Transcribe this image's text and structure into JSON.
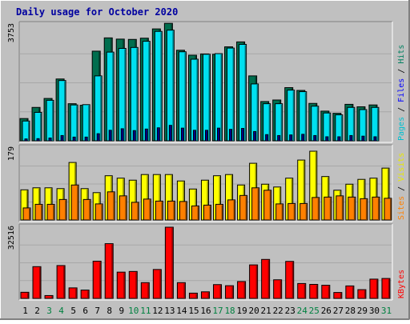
{
  "chart_data": [
    {
      "type": "bar",
      "title": "Daily usage for October 2020",
      "panel": "hits-files-pages",
      "ylabel_parts": [
        {
          "text": "Pages",
          "color": "#00c0d0"
        },
        {
          "text": " / ",
          "color": "#000000"
        },
        {
          "text": "Files",
          "color": "#0000ff"
        },
        {
          "text": " / ",
          "color": "#000000"
        },
        {
          "text": "Hits",
          "color": "#008060"
        }
      ],
      "ymax_label": "3753",
      "ylim": [
        0,
        3753
      ],
      "categories": [
        "1",
        "2",
        "3",
        "4",
        "5",
        "6",
        "7",
        "8",
        "9",
        "10",
        "11",
        "12",
        "13",
        "14",
        "15",
        "16",
        "17",
        "18",
        "19",
        "20",
        "21",
        "22",
        "23",
        "24",
        "25",
        "26",
        "27",
        "28",
        "29",
        "30",
        "31"
      ],
      "weekend_days": [
        "3",
        "4",
        "10",
        "11",
        "17",
        "18",
        "24",
        "25",
        "31"
      ],
      "series": [
        {
          "name": "Hits",
          "color": "#006e4e",
          "values": [
            720,
            1080,
            1370,
            2000,
            1200,
            1150,
            2900,
            3330,
            3290,
            3280,
            3320,
            3620,
            3800,
            2930,
            2770,
            2810,
            2800,
            3040,
            3200,
            2100,
            1270,
            1320,
            1720,
            1630,
            1210,
            960,
            890,
            1180,
            1100,
            1160,
            0
          ]
        },
        {
          "name": "Files",
          "color": "#00e0f0",
          "values": [
            640,
            920,
            1310,
            1950,
            1160,
            1170,
            2100,
            2870,
            2990,
            3020,
            3220,
            3540,
            3580,
            2880,
            2640,
            2800,
            2820,
            3000,
            3120,
            1840,
            1200,
            1200,
            1640,
            1590,
            1120,
            900,
            840,
            1080,
            1010,
            1080,
            0
          ]
        },
        {
          "name": "Pages",
          "color": "#0000c8",
          "values": [
            60,
            70,
            90,
            170,
            120,
            120,
            230,
            340,
            390,
            330,
            380,
            420,
            500,
            410,
            340,
            340,
            410,
            370,
            400,
            300,
            200,
            170,
            190,
            210,
            170,
            130,
            130,
            170,
            150,
            130,
            0
          ]
        }
      ]
    },
    {
      "type": "bar",
      "panel": "visits-sites",
      "ylabel_parts": [
        {
          "text": "Sites",
          "color": "#ff8000"
        },
        {
          "text": " / ",
          "color": "#000000"
        },
        {
          "text": "Visits",
          "color": "#e8e800"
        }
      ],
      "ymax_label": "179",
      "ylim": [
        0,
        179
      ],
      "categories": [
        "1",
        "2",
        "3",
        "4",
        "5",
        "6",
        "7",
        "8",
        "9",
        "10",
        "11",
        "12",
        "13",
        "14",
        "15",
        "16",
        "17",
        "18",
        "19",
        "20",
        "21",
        "22",
        "23",
        "24",
        "25",
        "26",
        "27",
        "28",
        "29",
        "30",
        "31"
      ],
      "series": [
        {
          "name": "Visits",
          "color": "#ffff00",
          "values": [
            75,
            80,
            80,
            78,
            143,
            78,
            68,
            110,
            104,
            99,
            113,
            113,
            113,
            97,
            77,
            99,
            110,
            113,
            87,
            141,
            89,
            82,
            104,
            149,
            171,
            108,
            74,
            89,
            101,
            104,
            129
          ]
        },
        {
          "name": "Sites",
          "color": "#ff8000",
          "values": [
            30,
            39,
            39,
            51,
            87,
            51,
            40,
            70,
            60,
            44,
            52,
            47,
            47,
            46,
            35,
            37,
            39,
            50,
            61,
            80,
            74,
            40,
            41,
            41,
            56,
            57,
            60,
            57,
            53,
            57,
            54
          ]
        }
      ]
    },
    {
      "type": "bar",
      "panel": "kbytes",
      "ylabel_parts": [
        {
          "text": "KBytes",
          "color": "#ff0000"
        }
      ],
      "ymax_label": "32516",
      "ylim": [
        0,
        32516
      ],
      "categories": [
        "1",
        "2",
        "3",
        "4",
        "5",
        "6",
        "7",
        "8",
        "9",
        "10",
        "11",
        "12",
        "13",
        "14",
        "15",
        "16",
        "17",
        "18",
        "19",
        "20",
        "21",
        "22",
        "23",
        "24",
        "25",
        "26",
        "27",
        "28",
        "29",
        "30",
        "31"
      ],
      "series": [
        {
          "name": "KBytes",
          "color": "#ff0000",
          "values": [
            2800,
            14500,
            1300,
            15000,
            4800,
            3800,
            17000,
            25000,
            12000,
            12300,
            7200,
            13200,
            32516,
            7200,
            2400,
            3000,
            6300,
            5800,
            7700,
            15300,
            17800,
            8500,
            16900,
            6800,
            6400,
            6000,
            2700,
            5700,
            4000,
            8800,
            9100
          ]
        }
      ]
    }
  ]
}
